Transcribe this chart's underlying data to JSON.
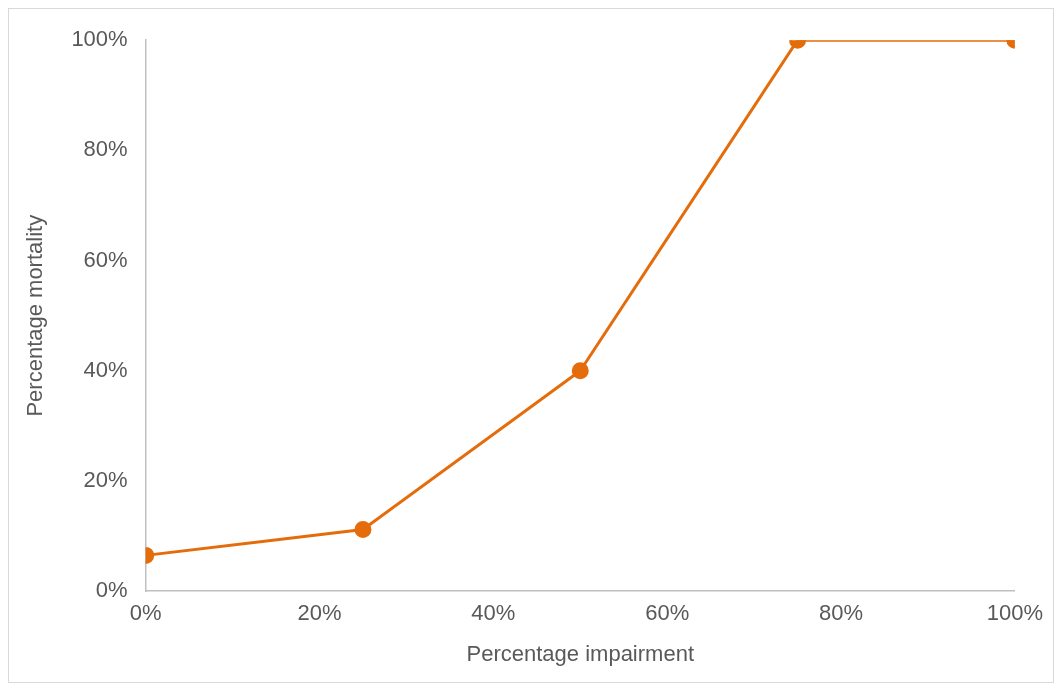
{
  "chart_data": {
    "type": "line",
    "xlabel": "Percentage impairment",
    "ylabel": "Percentage mortality",
    "x": [
      0,
      25,
      50,
      75,
      100
    ],
    "series": [
      {
        "color": "#e46c0a",
        "values": [
          6.5,
          11.2,
          40,
          100,
          100
        ]
      }
    ],
    "xlim": [
      0,
      100
    ],
    "ylim": [
      0,
      100
    ],
    "xticks": [
      {
        "value": 0,
        "label": "0%"
      },
      {
        "value": 20,
        "label": "20%"
      },
      {
        "value": 40,
        "label": "40%"
      },
      {
        "value": 60,
        "label": "60%"
      },
      {
        "value": 80,
        "label": "80%"
      },
      {
        "value": 100,
        "label": "100%"
      }
    ],
    "yticks": [
      {
        "value": 0,
        "label": "0%"
      },
      {
        "value": 20,
        "label": "20%"
      },
      {
        "value": 40,
        "label": "40%"
      },
      {
        "value": 60,
        "label": "60%"
      },
      {
        "value": 80,
        "label": "80%"
      },
      {
        "value": 100,
        "label": "100%"
      }
    ],
    "grid": false,
    "legend": false,
    "marker": "circle",
    "line_style": "solid"
  }
}
